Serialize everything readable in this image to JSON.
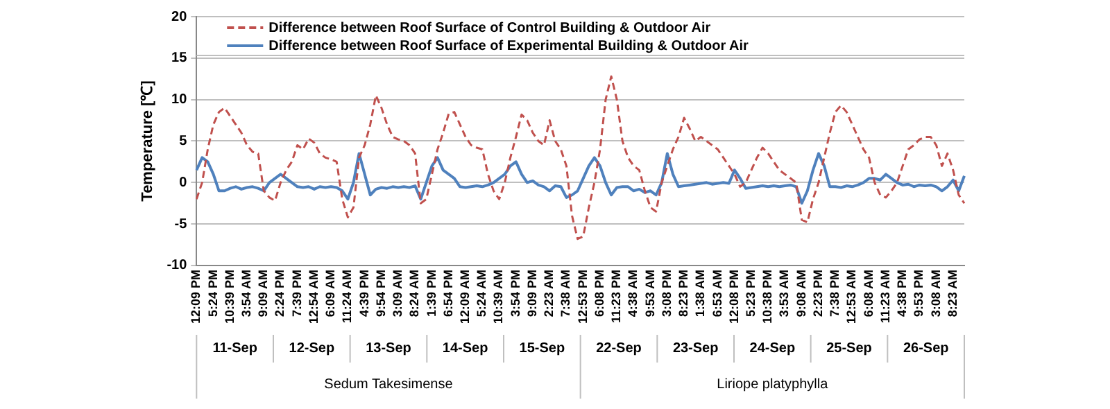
{
  "chart_data": {
    "type": "line",
    "ylabel": "Temperature [℃]",
    "categories": [
      "12:09 PM",
      null,
      null,
      "5:24 PM",
      null,
      null,
      "10:39 PM",
      null,
      null,
      "3:54 AM",
      null,
      null,
      "9:09 AM",
      null,
      null,
      "2:24 PM",
      null,
      null,
      "7:39 PM",
      null,
      null,
      "12:54 AM",
      null,
      null,
      "6:09 AM",
      null,
      null,
      "11:24 AM",
      null,
      null,
      "4:39 PM",
      null,
      null,
      "9:54 PM",
      null,
      null,
      "3:09 AM",
      null,
      null,
      "8:24 AM",
      null,
      null,
      "1:39 PM",
      null,
      null,
      "6:54 PM",
      null,
      null,
      "12:09 AM",
      null,
      null,
      "5:24 AM",
      null,
      null,
      "10:39 AM",
      null,
      null,
      "3:54 PM",
      null,
      null,
      "9:09 PM",
      null,
      null,
      "2:23 AM",
      null,
      null,
      "7:38 AM",
      null,
      null,
      "12:53 PM",
      null,
      null,
      "6:08 PM",
      null,
      null,
      "11:23 PM",
      null,
      null,
      "4:38 AM",
      null,
      null,
      "9:53 AM",
      null,
      null,
      "3:08 PM",
      null,
      null,
      "8:23 PM",
      null,
      null,
      "1:38 AM",
      null,
      null,
      "6:53 AM",
      null,
      null,
      "12:08 PM",
      null,
      null,
      "5:23 PM",
      null,
      null,
      "10:38 PM",
      null,
      null,
      "3:53 AM",
      null,
      null,
      "9:08 AM",
      null,
      null,
      "2:23 PM",
      null,
      null,
      "7:38 PM",
      null,
      null,
      "12:53 AM",
      null,
      null,
      "6:08 AM",
      null,
      null,
      "11:23 AM",
      null,
      null,
      "4:38 PM",
      null,
      null,
      "9:53 PM",
      null,
      null,
      "3:08 AM",
      null,
      null,
      "8:23 AM",
      null,
      null
    ],
    "series": [
      {
        "name": "Difference between Roof Surface of Control Building & Outdoor Air",
        "color": "#c0504d",
        "line_style": "dashed",
        "values": [
          -2,
          0,
          4,
          7,
          8.5,
          9,
          8,
          7,
          6,
          4.5,
          3.7,
          3.5,
          -1,
          -1.8,
          -2.2,
          0,
          1.5,
          2.5,
          4.5,
          4,
          5.3,
          4.8,
          3.5,
          3,
          2.8,
          2.5,
          -2,
          -4.2,
          -3,
          3,
          4.5,
          7,
          10.5,
          9,
          7,
          5.5,
          5.2,
          5,
          4.5,
          3.5,
          -2.5,
          -2,
          1,
          4,
          6,
          8.3,
          8.5,
          7,
          5.5,
          4.5,
          4.2,
          4,
          1,
          -1,
          -2,
          0,
          3,
          5.5,
          8.2,
          7.5,
          6,
          5,
          4.5,
          7.5,
          5,
          4,
          2,
          -4,
          -6.8,
          -6.5,
          -3,
          0,
          4,
          10,
          12.8,
          10,
          5,
          3,
          2,
          1.5,
          -1,
          -3,
          -3.5,
          0,
          2,
          4,
          5.5,
          7.8,
          6.5,
          5,
          5.5,
          5,
          4.5,
          4,
          3,
          2,
          1,
          -0.5,
          0,
          1.5,
          3,
          4.2,
          3.5,
          2.5,
          1.5,
          1,
          0.5,
          0,
          -4.5,
          -4.8,
          -2,
          0,
          3,
          6,
          8.5,
          9.3,
          8.5,
          7,
          5.5,
          4,
          3,
          0,
          -1.5,
          -1.8,
          -1,
          0,
          2,
          4,
          4.5,
          5.2,
          5.5,
          5.5,
          4.5,
          2,
          3.5,
          1.5,
          -1.5,
          -2.5
        ]
      },
      {
        "name": "Difference between Roof Surface of Experimental Building & Outdoor Air",
        "color": "#4f81bd",
        "line_style": "solid",
        "values": [
          1.5,
          3,
          2.5,
          1,
          -1,
          -1,
          -0.7,
          -0.5,
          -0.8,
          -0.6,
          -0.5,
          -0.7,
          -1,
          0,
          0.5,
          1,
          0.5,
          0,
          -0.5,
          -0.6,
          -0.5,
          -0.8,
          -0.5,
          -0.6,
          -0.5,
          -0.6,
          -1,
          -2,
          0,
          3.5,
          1,
          -1.5,
          -0.8,
          -0.6,
          -0.7,
          -0.5,
          -0.6,
          -0.5,
          -0.6,
          -0.4,
          -2,
          0,
          2,
          3,
          1.5,
          1,
          0.5,
          -0.5,
          -0.6,
          -0.5,
          -0.4,
          -0.5,
          -0.3,
          0,
          0.5,
          1,
          2,
          2.5,
          1,
          0,
          0.2,
          -0.3,
          -0.5,
          -1,
          -0.4,
          -0.5,
          -1.8,
          -1.5,
          -1,
          0.5,
          2,
          3,
          2,
          0,
          -1.5,
          -0.6,
          -0.5,
          -0.5,
          -1,
          -0.8,
          -1.2,
          -1,
          -1.5,
          0,
          3.5,
          1,
          -0.5,
          -0.4,
          -0.3,
          -0.2,
          -0.1,
          0,
          -0.2,
          -0.1,
          0,
          -0.1,
          1.5,
          0.5,
          -0.7,
          -0.6,
          -0.5,
          -0.4,
          -0.5,
          -0.4,
          -0.5,
          -0.4,
          -0.3,
          -0.5,
          -2.5,
          -1,
          1.5,
          3.5,
          2,
          -0.5,
          -0.5,
          -0.6,
          -0.4,
          -0.5,
          -0.3,
          0,
          0.5,
          0.5,
          0.3,
          1,
          0.5,
          0,
          -0.3,
          -0.2,
          -0.5,
          -0.3,
          -0.4,
          -0.3,
          -0.5,
          -1,
          -0.5,
          0.3,
          -1,
          0.8
        ]
      }
    ],
    "ylim": [
      -10,
      20
    ],
    "yticks": [
      -10,
      -5,
      0,
      5,
      10,
      15,
      20
    ],
    "grid": "y",
    "legend": "top left",
    "marker": "none",
    "annotations": [
      "11-Sep",
      "12-Sep",
      "13-Sep",
      "14-Sep",
      "15-Sep",
      "22-Sep",
      "23-Sep",
      "24-Sep",
      "25-Sep",
      "26-Sep",
      "Sedum Takesimense",
      "Liriope platyphylla"
    ]
  }
}
